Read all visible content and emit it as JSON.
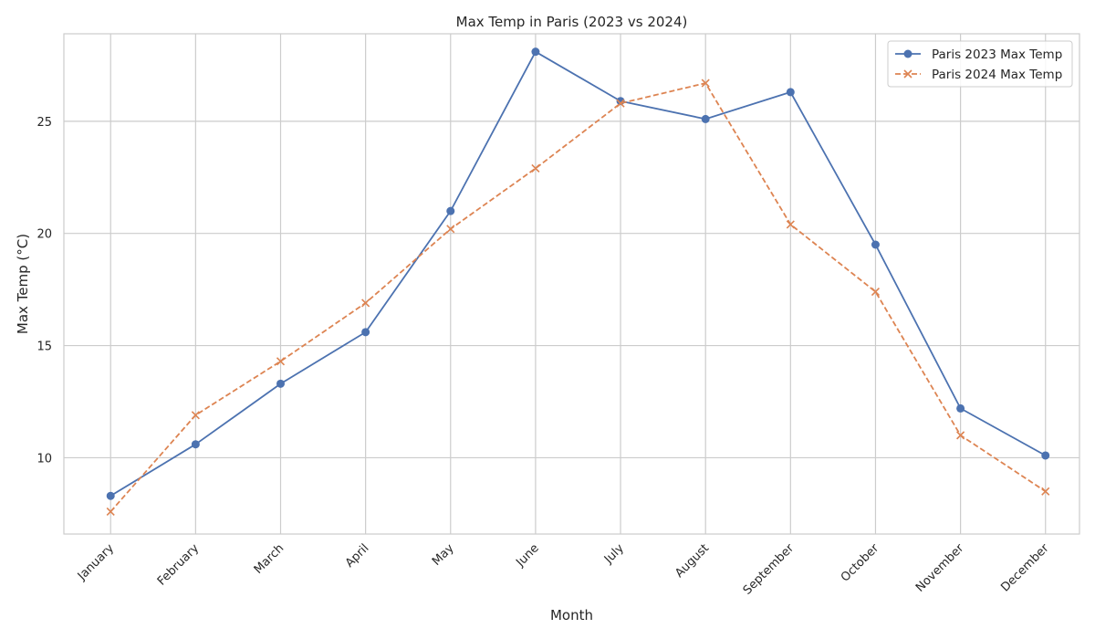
{
  "chart_data": {
    "type": "line",
    "title": "Max Temp in Paris (2023 vs 2024)",
    "xlabel": "Month",
    "ylabel": "Max Temp (°C)",
    "categories": [
      "January",
      "February",
      "March",
      "April",
      "May",
      "June",
      "July",
      "August",
      "September",
      "October",
      "November",
      "December"
    ],
    "ylim": [
      6.6,
      28.9
    ],
    "yticks": [
      10,
      15,
      20,
      25
    ],
    "grid": true,
    "legend_position": "top-right",
    "series": [
      {
        "name": "Paris 2023 Max Temp",
        "values": [
          8.3,
          10.6,
          13.3,
          15.6,
          21.0,
          28.1,
          25.9,
          25.1,
          26.3,
          19.5,
          12.2,
          10.1
        ],
        "color": "#4c72b0",
        "line_style": "solid",
        "marker": "circle"
      },
      {
        "name": "Paris 2024 Max Temp",
        "values": [
          7.6,
          11.9,
          14.3,
          16.9,
          20.2,
          22.9,
          25.8,
          26.7,
          20.4,
          17.4,
          11.0,
          8.5
        ],
        "color": "#dd8452",
        "line_style": "dashed",
        "marker": "x"
      }
    ]
  },
  "colors": {
    "grid": "#cccccc",
    "axes_edge": "#cccccc",
    "text": "#262626",
    "background": "#ffffff"
  }
}
